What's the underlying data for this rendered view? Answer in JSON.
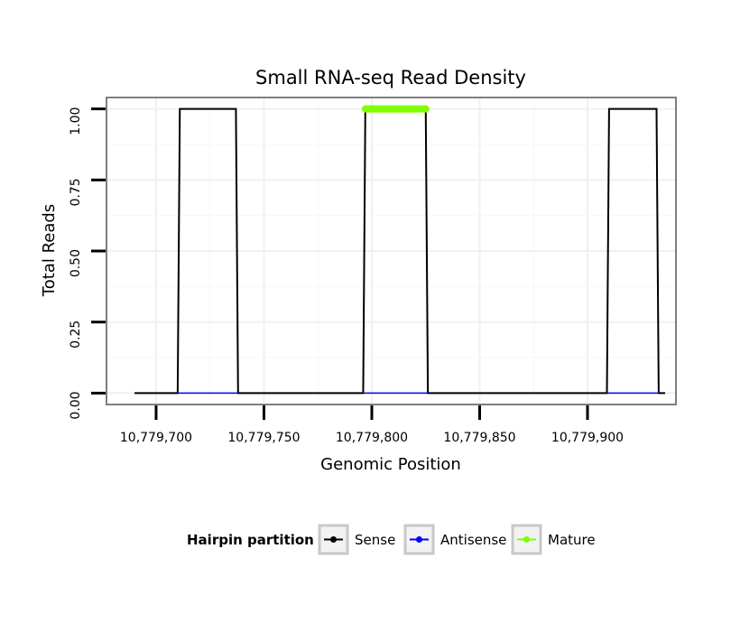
{
  "chart_data": {
    "type": "line",
    "title": "Small RNA-seq Read Density",
    "xlabel": "Genomic Position",
    "ylabel": "Total Reads",
    "xlim": [
      10779677,
      10779941
    ],
    "ylim": [
      -0.04,
      1.04
    ],
    "x_ticks": [
      10779700,
      10779750,
      10779800,
      10779850,
      10779900
    ],
    "x_tick_labels": [
      "10,779,700",
      "10,779,750",
      "10,779,800",
      "10,779,850",
      "10,779,900"
    ],
    "y_ticks": [
      0,
      0.25,
      0.5,
      0.75,
      1
    ],
    "y_tick_labels": [
      "0.00",
      "0.25",
      "0.50",
      "0.75",
      "1.00"
    ],
    "grid": true,
    "series": [
      {
        "name": "Sense",
        "color": "#000000",
        "x": [
          10779690,
          10779710,
          10779711,
          10779737,
          10779738,
          10779796,
          10779797,
          10779825,
          10779826,
          10779909,
          10779910,
          10779932,
          10779933,
          10779936
        ],
        "y": [
          0,
          0,
          1,
          1,
          0,
          0,
          1,
          1,
          0,
          0,
          1,
          1,
          0,
          0
        ]
      },
      {
        "name": "Antisense",
        "color": "#0000ff",
        "x": [
          10779710,
          10779738,
          10779796,
          10779826,
          10779909,
          10779933
        ],
        "y": [
          0,
          0,
          0,
          0,
          0,
          0
        ],
        "segments": [
          [
            0,
            1
          ],
          [
            2,
            3
          ],
          [
            4,
            5
          ]
        ]
      },
      {
        "name": "Mature",
        "color": "#7fff00",
        "x": [
          10779797,
          10779825
        ],
        "y": [
          1,
          1
        ]
      }
    ],
    "legend": {
      "title": "Hairpin partition",
      "position": "bottom",
      "entries": [
        "Sense",
        "Antisense",
        "Mature"
      ]
    }
  }
}
